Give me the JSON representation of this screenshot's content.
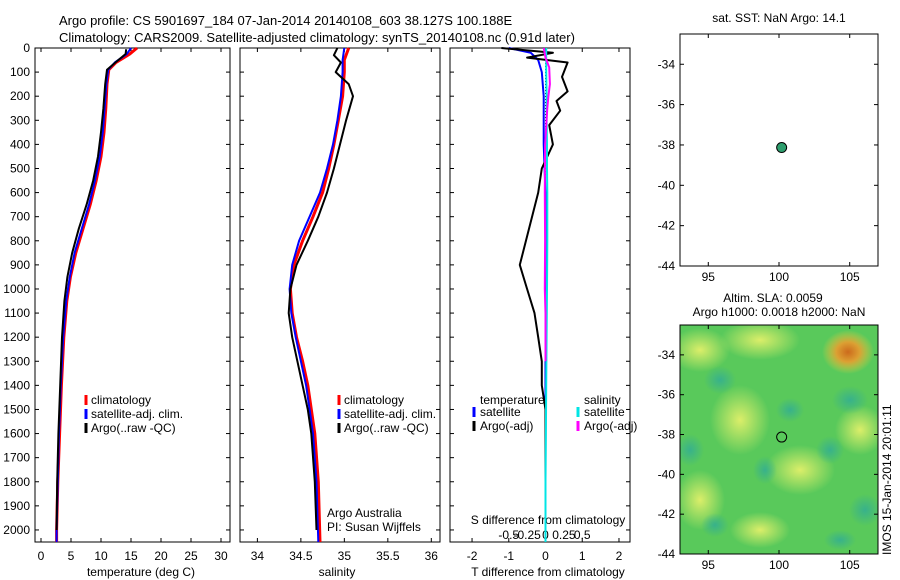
{
  "header": {
    "line1": "Argo profile: CS 5901697_184 07-Jan-2014 20140108_603 38.127S 100.188E",
    "line2": "Climatology: CARS2009. Satellite-adjusted climatology: synTS_20140108.nc (0.91d later)"
  },
  "colors": {
    "climatology": "#ff0000",
    "satellite": "#0000ff",
    "argo": "#000000",
    "sal_satellite": "#00e5e5",
    "sal_argo": "#ff00ff",
    "marker": "#2e9e6e"
  },
  "chart_data": [
    {
      "id": "temperature",
      "type": "line",
      "xlabel": "temperature (deg C)",
      "ylabel": "",
      "xlim": [
        -1,
        31.5
      ],
      "ylim": [
        2050,
        0
      ],
      "xticks": [
        "0",
        "5",
        "10",
        "15",
        "20",
        "25",
        "30"
      ],
      "xtick_values": [
        0,
        5,
        10,
        15,
        20,
        25,
        30
      ],
      "yticks": [
        "0",
        "100",
        "200",
        "300",
        "400",
        "500",
        "600",
        "700",
        "800",
        "900",
        "1000",
        "1100",
        "1200",
        "1300",
        "1400",
        "1500",
        "1600",
        "1700",
        "1800",
        "1900",
        "2000"
      ],
      "ytick_values": [
        0,
        100,
        200,
        300,
        400,
        500,
        600,
        700,
        800,
        900,
        1000,
        1100,
        1200,
        1300,
        1400,
        1500,
        1600,
        1700,
        1800,
        1900,
        2000
      ],
      "legend": [
        "climatology",
        "satellite-adj. clim.",
        "Argo(..raw -QC)"
      ],
      "series": [
        {
          "name": "climatology",
          "color": "#ff0000",
          "width": 3,
          "x": [
            16.0,
            14.8,
            12.5,
            11.3,
            11.0,
            10.8,
            10.5,
            10.0,
            9.2,
            8.2,
            7.0,
            5.8,
            4.9,
            4.3,
            3.8,
            3.4,
            3.1,
            2.8,
            2.6,
            2.6
          ],
          "y": [
            0,
            25,
            60,
            90,
            150,
            250,
            350,
            450,
            550,
            650,
            750,
            850,
            950,
            1050,
            1200,
            1400,
            1600,
            1800,
            2000,
            2050
          ]
        },
        {
          "name": "satellite-adj. clim.",
          "color": "#0000ff",
          "width": 2,
          "x": [
            15.0,
            14.3,
            12.3,
            11.2,
            10.9,
            10.6,
            10.3,
            9.8,
            9.0,
            8.0,
            6.8,
            5.6,
            4.8,
            4.2,
            3.7,
            3.3,
            3.0,
            2.8,
            2.6,
            2.6
          ],
          "y": [
            0,
            25,
            60,
            90,
            150,
            250,
            350,
            450,
            550,
            650,
            750,
            850,
            950,
            1050,
            1200,
            1400,
            1600,
            1800,
            2000,
            2050
          ]
        },
        {
          "name": "Argo(..raw -QC)",
          "color": "#000000",
          "width": 2,
          "x": [
            14.2,
            14.1,
            12.4,
            11.0,
            10.7,
            10.4,
            10.0,
            9.5,
            8.7,
            7.6,
            6.3,
            5.2,
            4.4,
            3.9,
            3.5,
            3.2,
            2.9,
            2.7,
            2.6
          ],
          "y": [
            5,
            25,
            60,
            90,
            150,
            250,
            350,
            450,
            550,
            650,
            750,
            850,
            950,
            1050,
            1200,
            1400,
            1600,
            1800,
            2000
          ]
        }
      ]
    },
    {
      "id": "salinity",
      "type": "line",
      "xlabel": "salinity",
      "xlim": [
        33.8,
        36.1
      ],
      "ylim": [
        2050,
        0
      ],
      "xticks": [
        "34",
        "34.5",
        "35",
        "35.5",
        "36"
      ],
      "xtick_values": [
        34,
        34.5,
        35,
        35.5,
        36
      ],
      "legend": [
        "climatology",
        "satellite-adj. clim.",
        "Argo(..raw -QC)"
      ],
      "annotations": [
        "Argo Australia",
        "PI: Susan Wijffels"
      ],
      "series": [
        {
          "name": "climatology",
          "color": "#ff0000",
          "width": 3,
          "x": [
            35.05,
            35.0,
            35.0,
            34.98,
            34.93,
            34.88,
            34.82,
            34.75,
            34.64,
            34.52,
            34.42,
            34.38,
            34.4,
            34.45,
            34.52,
            34.58,
            34.62,
            34.66,
            34.7,
            34.72
          ],
          "y": [
            0,
            50,
            100,
            200,
            300,
            400,
            500,
            600,
            700,
            800,
            900,
            1000,
            1100,
            1200,
            1300,
            1400,
            1500,
            1600,
            1800,
            2050
          ]
        },
        {
          "name": "satellite-adj. clim.",
          "color": "#0000ff",
          "width": 2,
          "x": [
            35.0,
            34.98,
            34.98,
            34.96,
            34.92,
            34.87,
            34.8,
            34.72,
            34.6,
            34.48,
            34.4,
            34.37,
            34.39,
            34.44,
            34.5,
            34.56,
            34.6,
            34.64,
            34.68,
            34.7
          ],
          "y": [
            0,
            50,
            100,
            200,
            300,
            400,
            500,
            600,
            700,
            800,
            900,
            1000,
            1100,
            1200,
            1300,
            1400,
            1500,
            1600,
            1800,
            2050
          ]
        },
        {
          "name": "Argo(..raw -QC)",
          "color": "#000000",
          "width": 2,
          "x": [
            34.92,
            34.88,
            34.96,
            34.9,
            35.05,
            35.1,
            35.02,
            34.95,
            34.88,
            34.8,
            34.7,
            34.58,
            34.45,
            34.38,
            34.36,
            34.4,
            34.46,
            34.52,
            34.58,
            34.62,
            34.66,
            34.68
          ],
          "y": [
            0,
            30,
            60,
            100,
            150,
            200,
            300,
            400,
            500,
            600,
            700,
            800,
            900,
            1000,
            1100,
            1200,
            1300,
            1400,
            1500,
            1600,
            1800,
            2000
          ]
        }
      ]
    },
    {
      "id": "difference",
      "type": "line",
      "xlabel": "T difference from climatology",
      "xlabel2": "S difference from climatology",
      "xlim": [
        -2.6,
        2.3
      ],
      "ylim": [
        2050,
        0
      ],
      "xticks": [
        "-2",
        "-1",
        "0",
        "1",
        "2"
      ],
      "xtick_values": [
        -2,
        -1,
        0,
        1,
        2
      ],
      "xticks2": [
        "-0.5",
        "-0.25",
        "0",
        "0.25",
        "0.5"
      ],
      "xtick2_values": [
        -0.5,
        -0.25,
        0,
        0.25,
        0.5
      ],
      "legend_title_t": "temperature",
      "legend_title_s": "salinity",
      "legend": [
        "satellite",
        "Argo(-adj)",
        "satellite",
        "Argo(-adj)"
      ],
      "series": [
        {
          "name": "T satellite",
          "color": "#0000ff",
          "width": 2,
          "x": [
            -1.0,
            -0.4,
            -0.2,
            -0.1,
            -0.05,
            -0.05,
            0.0,
            0.0,
            0.0,
            0.0,
            0.0,
            0.0,
            0.0
          ],
          "y": [
            0,
            20,
            50,
            100,
            200,
            400,
            600,
            800,
            1000,
            1200,
            1500,
            1800,
            2000
          ]
        },
        {
          "name": "T Argo(-adj)",
          "color": "#000000",
          "width": 2,
          "x": [
            -1.2,
            0.2,
            -0.5,
            0.6,
            0.45,
            0.6,
            0.3,
            0.4,
            0.1,
            0.2,
            -0.1,
            -0.2,
            -0.7,
            -0.5,
            -0.3,
            -0.2,
            -0.1,
            -0.1,
            0.0,
            0.0,
            0.0
          ],
          "y": [
            0,
            20,
            40,
            60,
            120,
            180,
            220,
            260,
            320,
            400,
            500,
            600,
            900,
            1000,
            1100,
            1200,
            1300,
            1400,
            1500,
            1700,
            1900
          ]
        },
        {
          "name": "S satellite",
          "color": "#00e5e5",
          "width": 2,
          "x": [
            0.02,
            0.02,
            0.03,
            0.03,
            0.04,
            0.04,
            0.05,
            0.05,
            0.04,
            0.03,
            0.02,
            0.01,
            0.0,
            0.0
          ],
          "y": [
            0,
            100,
            200,
            300,
            400,
            500,
            600,
            800,
            1000,
            1200,
            1400,
            1600,
            1800,
            2050
          ]
        },
        {
          "name": "S Argo(-adj)",
          "color": "#ff00ff",
          "width": 2,
          "x": [
            -0.05,
            0.0,
            0.1,
            0.12,
            0.08,
            0.05,
            -0.01,
            -0.02,
            -0.01,
            -0.02,
            0.0,
            0.0,
            0.0
          ],
          "y": [
            0,
            40,
            80,
            150,
            200,
            250,
            400,
            600,
            800,
            1000,
            1100,
            1200,
            1300
          ]
        }
      ]
    },
    {
      "id": "location-sst",
      "type": "scatter",
      "title": "sat. SST: NaN Argo: 14.1",
      "xlim": [
        93,
        107
      ],
      "ylim": [
        -44,
        -32.5
      ],
      "xticks": [
        "95",
        "100",
        "105"
      ],
      "xtick_values": [
        95,
        100,
        105
      ],
      "yticks": [
        "-34",
        "-36",
        "-38",
        "-40",
        "-42",
        "-44"
      ],
      "ytick_values": [
        -34,
        -36,
        -38,
        -40,
        -42,
        -44
      ],
      "points": [
        {
          "x": 100.188,
          "y": -38.127
        }
      ]
    },
    {
      "id": "location-sla",
      "type": "heatmap",
      "title": "Altim. SLA: 0.0059",
      "subtitle": "Argo h1000: 0.0018 h2000: NaN",
      "xlim": [
        93,
        107
      ],
      "ylim": [
        -44,
        -32.5
      ],
      "xticks": [
        "95",
        "100",
        "105"
      ],
      "xtick_values": [
        95,
        100,
        105
      ],
      "yticks": [
        "-34",
        "-36",
        "-38",
        "-40",
        "-42",
        "-44"
      ],
      "ytick_values": [
        -34,
        -36,
        -38,
        -40,
        -42,
        -44
      ],
      "points": [
        {
          "x": 100.188,
          "y": -38.127
        }
      ],
      "side_label": "IMOS 15-Jan-2014 20:01:11"
    }
  ]
}
